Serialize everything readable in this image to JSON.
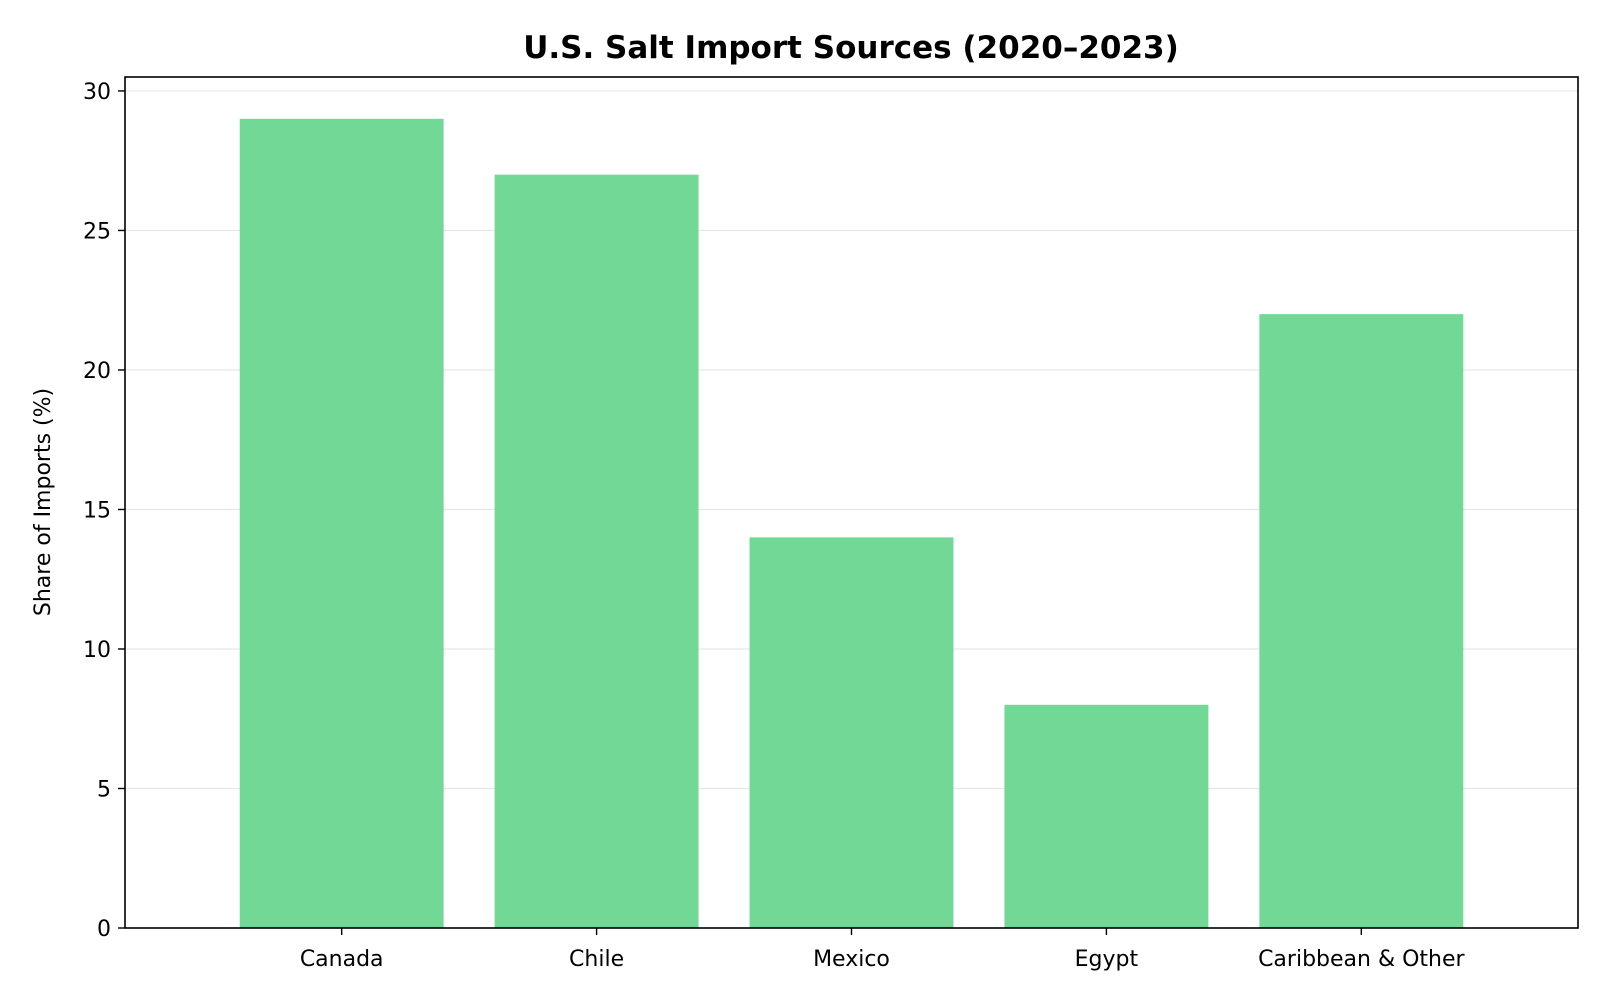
{
  "chart_data": {
    "type": "bar",
    "title": "U.S. Salt Import Sources (2020–2023)",
    "xlabel": "",
    "ylabel": "Share of Imports (%)",
    "categories": [
      "Canada",
      "Chile",
      "Mexico",
      "Egypt",
      "Caribbean & Other"
    ],
    "values": [
      29,
      27,
      14,
      8,
      22
    ],
    "ylim": [
      0,
      30.5
    ],
    "yticks": [
      0,
      5,
      10,
      15,
      20,
      25,
      30
    ],
    "grid": "horizontal",
    "legend": "none",
    "bar_color": "#72d896",
    "grid_color": "#e6e6e6"
  }
}
